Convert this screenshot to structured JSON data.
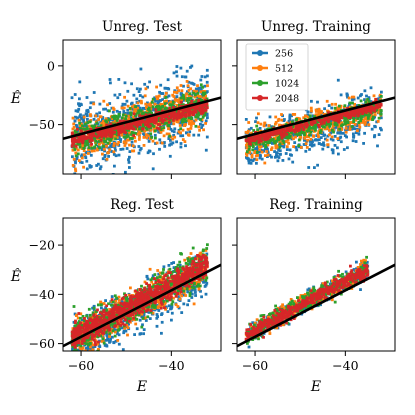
{
  "chart_data": [
    {
      "type": "scatter",
      "title": "Unreg. Test",
      "xlabel": "",
      "ylabel": "Ê",
      "xlim": [
        -64,
        -29
      ],
      "ylim": [
        -92,
        22
      ],
      "xticks": [
        -60,
        -40
      ],
      "yticks": [
        -50,
        0
      ],
      "yticklabels": [
        "−50",
        "0"
      ],
      "grid": false,
      "clouds": [
        {
          "series": "256",
          "x": [
            -62,
            -32
          ],
          "center": [
            -0.2,
            10
          ],
          "spread_y": 13,
          "n": 700,
          "seed": 11
        },
        {
          "series": "512",
          "x": [
            -62,
            -32
          ],
          "center": [
            -1.3,
            4
          ],
          "spread_y": 9,
          "n": 600,
          "seed": 12
        },
        {
          "series": "1024",
          "x": [
            -62,
            -32
          ],
          "center": [
            -1.3,
            2
          ],
          "spread_y": 6,
          "n": 550,
          "seed": 13
        },
        {
          "series": "2048",
          "x": [
            -62,
            -32
          ],
          "center": [
            -1.1,
            0
          ],
          "spread_y": 3,
          "n": 500,
          "seed": 14
        }
      ],
      "reference_line": {
        "x": [
          -64,
          -29
        ],
        "y": [
          -62,
          -27
        ]
      }
    },
    {
      "type": "scatter",
      "title": "Unreg. Training",
      "xlabel": "",
      "ylabel": "",
      "xlim": [
        -64,
        -29
      ],
      "ylim": [
        -92,
        22
      ],
      "xticks": [
        -60,
        -40
      ],
      "yticks": [
        -50,
        0
      ],
      "yticklabels": [
        "",
        ""
      ],
      "grid": false,
      "clouds": [
        {
          "series": "256",
          "x": [
            -62,
            -32
          ],
          "center": [
            -5,
            -2
          ],
          "spread_y": 11,
          "n": 500,
          "seed": 21
        },
        {
          "series": "512",
          "x": [
            -62,
            -32
          ],
          "center": [
            -4,
            0
          ],
          "spread_y": 7,
          "n": 450,
          "seed": 22
        },
        {
          "series": "1024",
          "x": [
            -62,
            -32
          ],
          "center": [
            -3,
            0
          ],
          "spread_y": 4,
          "n": 400,
          "seed": 23
        },
        {
          "series": "2048",
          "x": [
            -62,
            -32
          ],
          "center": [
            -1.5,
            0
          ],
          "spread_y": 2,
          "n": 380,
          "seed": 24
        }
      ],
      "reference_line": {
        "x": [
          -64,
          -29
        ],
        "y": [
          -62,
          -27
        ]
      }
    },
    {
      "type": "scatter",
      "title": "Reg. Test",
      "xlabel": "E",
      "ylabel": "Ê",
      "xlim": [
        -64,
        -29
      ],
      "ylim": [
        -63,
        -9
      ],
      "xticks": [
        -60,
        -40
      ],
      "xticklabels": [
        "−60",
        "−40"
      ],
      "yticks": [
        -60,
        -40,
        -20
      ],
      "yticklabels": [
        "−60",
        "−40",
        "−20"
      ],
      "grid": false,
      "clouds": [
        {
          "series": "256",
          "x": [
            -62,
            -32
          ],
          "center": [
            1.5,
            0
          ],
          "spread_y": 5,
          "n": 650,
          "seed": 31
        },
        {
          "series": "512",
          "x": [
            -62,
            -32
          ],
          "center": [
            3,
            0
          ],
          "spread_y": 4,
          "n": 600,
          "seed": 32
        },
        {
          "series": "1024",
          "x": [
            -62,
            -32
          ],
          "center": [
            4,
            0
          ],
          "spread_y": 3.5,
          "n": 600,
          "seed": 33
        },
        {
          "series": "2048",
          "x": [
            -62,
            -32
          ],
          "center": [
            4,
            0
          ],
          "spread_y": 2.5,
          "n": 800,
          "seed": 34
        }
      ],
      "reference_line": {
        "x": [
          -64,
          -29
        ],
        "y": [
          -61,
          -28
        ]
      }
    },
    {
      "type": "scatter",
      "title": "Reg. Training",
      "xlabel": "E",
      "ylabel": "",
      "xlim": [
        -64,
        -29
      ],
      "ylim": [
        -63,
        -9
      ],
      "xticks": [
        -60,
        -40
      ],
      "xticklabels": [
        "−60",
        "−40"
      ],
      "yticks": [
        -60,
        -40,
        -20
      ],
      "yticklabels": [
        "",
        "",
        ""
      ],
      "grid": false,
      "clouds": [
        {
          "series": "256",
          "x": [
            -62,
            -35
          ],
          "center": [
            5,
            0
          ],
          "spread_y": 2,
          "n": 350,
          "seed": 41
        },
        {
          "series": "512",
          "x": [
            -62,
            -35
          ],
          "center": [
            5.5,
            0
          ],
          "spread_y": 2,
          "n": 350,
          "seed": 42
        },
        {
          "series": "1024",
          "x": [
            -62,
            -35
          ],
          "center": [
            5.5,
            0
          ],
          "spread_y": 2,
          "n": 350,
          "seed": 43
        },
        {
          "series": "2048",
          "x": [
            -62,
            -35
          ],
          "center": [
            5.2,
            0
          ],
          "spread_y": 1.5,
          "n": 450,
          "seed": 44
        }
      ],
      "reference_line": {
        "x": [
          -64,
          -29
        ],
        "y": [
          -61,
          -28
        ]
      }
    }
  ],
  "legend": {
    "placement": "top-left of Unreg. Training",
    "entries": [
      {
        "name": "256",
        "color": "#1f77b4"
      },
      {
        "name": "512",
        "color": "#ff7f0e"
      },
      {
        "name": "1024",
        "color": "#2ca02c"
      },
      {
        "name": "2048",
        "color": "#d62728"
      }
    ]
  },
  "colors": {
    "256": "#1f77b4",
    "512": "#ff7f0e",
    "1024": "#2ca02c",
    "2048": "#d62728",
    "reference": "#000000"
  }
}
